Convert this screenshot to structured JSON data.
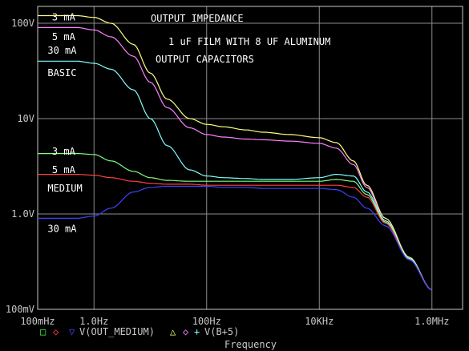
{
  "chart_data": {
    "type": "line",
    "title_lines": [
      "OUTPUT IMPEDANCE",
      "1 uF FILM WITH 8 UF ALUMINUM",
      "OUTPUT CAPACITORS"
    ],
    "xlabel": "Frequency",
    "ylabel": "",
    "x_scale": "log",
    "y_scale": "log",
    "xlim": [
      0.1,
      3500000
    ],
    "ylim": [
      0.1,
      150
    ],
    "x_ticks": [
      {
        "value": 0.1,
        "label": "100mHz"
      },
      {
        "value": 1,
        "label": "1.0Hz"
      },
      {
        "value": 100,
        "label": "100Hz"
      },
      {
        "value": 10000,
        "label": "10KHz"
      },
      {
        "value": 1000000,
        "label": "1.0MHz"
      }
    ],
    "y_ticks": [
      {
        "value": 0.1,
        "label": "100mV"
      },
      {
        "value": 1,
        "label": "1.0V"
      },
      {
        "value": 10,
        "label": "10V"
      },
      {
        "value": 100,
        "label": "100V"
      }
    ],
    "annotations": [
      {
        "text": "3 mA",
        "x": 0.18,
        "y": 115,
        "color": "#ffffff"
      },
      {
        "text": "5 mA",
        "x": 0.18,
        "y": 72,
        "color": "#ffffff"
      },
      {
        "text": "30 mA",
        "x": 0.15,
        "y": 52,
        "color": "#ffffff"
      },
      {
        "text": "BASIC",
        "x": 0.15,
        "y": 30,
        "color": "#ffffff"
      },
      {
        "text": "3 mA",
        "x": 0.18,
        "y": 4.5,
        "color": "#ffffff"
      },
      {
        "text": "5 mA",
        "x": 0.18,
        "y": 2.9,
        "color": "#ffffff"
      },
      {
        "text": "MEDIUM",
        "x": 0.15,
        "y": 1.85,
        "color": "#ffffff"
      },
      {
        "text": "30 mA",
        "x": 0.15,
        "y": 0.7,
        "color": "#ffffff"
      }
    ],
    "legend_labels": [
      "V(OUT_MEDIUM)",
      "V(B+5)"
    ],
    "legend_placement": "bottom-left",
    "series": [
      {
        "color": "#ffff80",
        "x": [
          0.1,
          0.5,
          1,
          2,
          5,
          10,
          20,
          50,
          100,
          200,
          500,
          1000,
          3000,
          10000,
          20000,
          40000,
          70000,
          150000,
          400000,
          1000000
        ],
        "y": [
          120,
          120,
          115,
          100,
          60,
          30,
          16,
          10,
          8.7,
          8.2,
          7.6,
          7.2,
          6.8,
          6.3,
          5.6,
          3.6,
          2.0,
          0.9,
          0.35,
          0.16
        ]
      },
      {
        "color": "#ff80ff",
        "x": [
          0.1,
          0.5,
          1,
          2,
          5,
          10,
          20,
          50,
          100,
          200,
          500,
          1000,
          3000,
          10000,
          20000,
          40000,
          70000,
          150000,
          400000,
          1000000
        ],
        "y": [
          90,
          90,
          85,
          72,
          45,
          24,
          13,
          8,
          6.8,
          6.4,
          6.1,
          6.0,
          5.8,
          5.5,
          4.9,
          3.3,
          1.9,
          0.85,
          0.34,
          0.16
        ]
      },
      {
        "color": "#80ffff",
        "x": [
          0.1,
          0.5,
          1,
          2,
          5,
          10,
          20,
          50,
          100,
          200,
          500,
          1000,
          3000,
          10000,
          20000,
          40000,
          70000,
          150000,
          400000,
          1000000
        ],
        "y": [
          40,
          40,
          38,
          33,
          20,
          10,
          5.2,
          2.9,
          2.5,
          2.4,
          2.35,
          2.3,
          2.3,
          2.4,
          2.6,
          2.5,
          1.7,
          0.85,
          0.34,
          0.16
        ]
      },
      {
        "color": "#80ff80",
        "x": [
          0.1,
          0.5,
          1,
          2,
          5,
          10,
          20,
          50,
          100,
          200,
          500,
          1000,
          3000,
          10000,
          20000,
          40000,
          70000,
          150000,
          400000,
          1000000
        ],
        "y": [
          4.3,
          4.3,
          4.2,
          3.6,
          2.8,
          2.4,
          2.25,
          2.2,
          2.2,
          2.2,
          2.2,
          2.2,
          2.2,
          2.2,
          2.3,
          2.2,
          1.6,
          0.82,
          0.33,
          0.16
        ]
      },
      {
        "color": "#ff4040",
        "x": [
          0.1,
          0.5,
          1,
          2,
          5,
          10,
          20,
          50,
          100,
          200,
          500,
          1000,
          3000,
          10000,
          20000,
          40000,
          70000,
          150000,
          400000,
          1000000
        ],
        "y": [
          2.6,
          2.6,
          2.55,
          2.4,
          2.2,
          2.1,
          2.05,
          2.05,
          2.0,
          2.0,
          2.0,
          2.0,
          2.0,
          2.0,
          2.0,
          1.9,
          1.5,
          0.8,
          0.33,
          0.16
        ]
      },
      {
        "color": "#4040ff",
        "x": [
          0.1,
          0.5,
          1,
          2,
          5,
          10,
          20,
          50,
          100,
          200,
          500,
          1000,
          3000,
          10000,
          20000,
          40000,
          70000,
          150000,
          400000,
          1000000
        ],
        "y": [
          0.9,
          0.9,
          0.95,
          1.15,
          1.7,
          1.9,
          1.95,
          1.95,
          1.95,
          1.9,
          1.9,
          1.85,
          1.85,
          1.85,
          1.8,
          1.5,
          1.15,
          0.75,
          0.33,
          0.16
        ]
      }
    ],
    "grid": true
  }
}
